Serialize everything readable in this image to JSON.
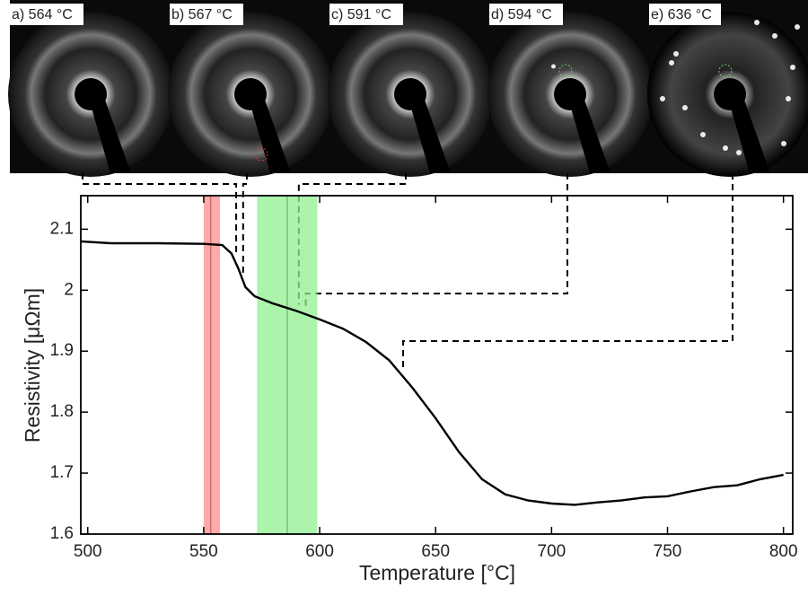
{
  "chart_data": {
    "type": "line",
    "xlabel": "Temperature [°C]",
    "ylabel": "Resistivity [μΩm]",
    "xlim": [
      497,
      804
    ],
    "ylim": [
      1.6,
      2.155
    ],
    "xticks": [
      500,
      550,
      600,
      650,
      700,
      750,
      800
    ],
    "yticks": [
      1.6,
      1.7,
      1.8,
      1.9,
      2,
      2.1
    ],
    "color": "#000000",
    "x": [
      497,
      510,
      530,
      550,
      558,
      562,
      565,
      568,
      572,
      580,
      590,
      600,
      610,
      620,
      630,
      640,
      650,
      660,
      670,
      680,
      690,
      700,
      710,
      720,
      730,
      740,
      750,
      760,
      770,
      780,
      790,
      800
    ],
    "values": [
      2.08,
      2.077,
      2.077,
      2.076,
      2.074,
      2.06,
      2.035,
      2.005,
      1.99,
      1.978,
      1.966,
      1.952,
      1.937,
      1.915,
      1.885,
      1.84,
      1.79,
      1.735,
      1.69,
      1.665,
      1.655,
      1.65,
      1.648,
      1.652,
      1.655,
      1.66,
      1.662,
      1.67,
      1.677,
      1.68,
      1.69,
      1.697
    ],
    "bands": [
      {
        "range": [
          550,
          557
        ],
        "center": 553,
        "color": "#ff8c8c"
      },
      {
        "range": [
          573,
          599
        ],
        "center": 586,
        "color": "#90f090"
      }
    ],
    "panels": [
      {
        "label": "a) 564 °C",
        "temperature": 564
      },
      {
        "label": "b) 567 °C",
        "temperature": 567
      },
      {
        "label": "c) 591 °C",
        "temperature": 591
      },
      {
        "label": "d) 594 °C",
        "temperature": 594
      },
      {
        "label": "e) 636 °C",
        "temperature": 636
      }
    ]
  }
}
